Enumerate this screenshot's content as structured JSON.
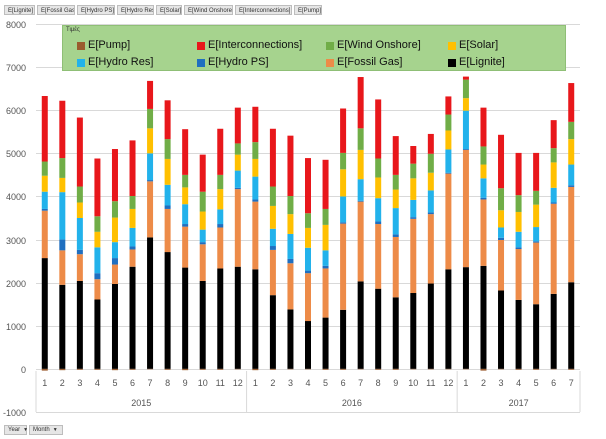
{
  "field_buttons": [
    "E[Lignite]",
    "E[Fossil Gas]",
    "E[Hydro PS]",
    "E[Hydro Res]",
    "E[Solar]",
    "E[Wind Onshore]",
    "E[Interconnections]",
    "E[Pump]"
  ],
  "axis_buttons": [
    {
      "label": "Year",
      "arrow": "▼"
    },
    {
      "label": "Month",
      "arrow": "▼"
    }
  ],
  "colors": {
    "E[Pump]": "#9a5b2e",
    "E[Interconnections]": "#e8171b",
    "E[Wind Onshore]": "#70ad47",
    "E[Solar]": "#ffc000",
    "E[Hydro Res]": "#22b2eb",
    "E[Hydro PS]": "#1f6fc0",
    "E[Fossil Gas]": "#ed8b48",
    "E[Lignite]": "#000000"
  },
  "chart_data": {
    "type": "bar",
    "stacked": true,
    "legend_title": "Τιμές",
    "ylim": [
      -1000,
      8000
    ],
    "yticks": [
      -1000,
      0,
      1000,
      2000,
      3000,
      4000,
      5000,
      6000,
      7000,
      8000
    ],
    "grid": true,
    "categories": [
      "1",
      "2",
      "3",
      "4",
      "5",
      "6",
      "7",
      "8",
      "9",
      "10",
      "11",
      "12",
      "1",
      "2",
      "3",
      "4",
      "5",
      "6",
      "7",
      "8",
      "9",
      "10",
      "11",
      "12",
      "1",
      "2",
      "3",
      "4",
      "5",
      "6",
      "7"
    ],
    "groups": [
      {
        "label": "2015",
        "count": 12
      },
      {
        "label": "2016",
        "count": 12
      },
      {
        "label": "2017",
        "count": 7
      }
    ],
    "series": [
      {
        "name": "E[Lignite]",
        "values": [
          2570,
          1950,
          2040,
          1610,
          1970,
          2370,
          3050,
          2710,
          2350,
          2040,
          2330,
          2370,
          2310,
          1710,
          1380,
          1110,
          1190,
          1370,
          2030,
          1860,
          1660,
          1760,
          1980,
          2310,
          2360,
          2390,
          1820,
          1600,
          1500,
          1740,
          2010
        ]
      },
      {
        "name": "E[Fossil Gas]",
        "values": [
          1100,
          800,
          620,
          470,
          450,
          400,
          1300,
          1000,
          950,
          850,
          950,
          1800,
          1570,
          1050,
          1070,
          1110,
          1140,
          2000,
          1850,
          1500,
          1400,
          1720,
          1610,
          2220,
          2720,
          1540,
          1170,
          1180,
          1430,
          2090,
          2210
        ]
      },
      {
        "name": "E[Hydro PS]",
        "values": [
          40,
          250,
          100,
          140,
          150,
          70,
          30,
          80,
          60,
          50,
          80,
          30,
          50,
          90,
          100,
          60,
          60,
          30,
          20,
          60,
          60,
          40,
          40,
          20,
          20,
          40,
          50,
          40,
          30,
          30,
          40
        ]
      },
      {
        "name": "E[Hydro Res]",
        "values": [
          400,
          1100,
          740,
          600,
          370,
          430,
          620,
          480,
          460,
          290,
          340,
          400,
          530,
          400,
          580,
          530,
          360,
          600,
          500,
          540,
          610,
          400,
          510,
          540,
          890,
          450,
          240,
          360,
          330,
          340,
          480
        ]
      },
      {
        "name": "E[Solar]",
        "values": [
          370,
          330,
          360,
          360,
          570,
          440,
          580,
          600,
          390,
          420,
          470,
          370,
          410,
          530,
          460,
          460,
          590,
          630,
          680,
          480,
          430,
          500,
          410,
          440,
          290,
          320,
          400,
          460,
          520,
          590,
          590
        ]
      },
      {
        "name": "E[Wind Onshore]",
        "values": [
          330,
          460,
          370,
          360,
          380,
          300,
          450,
          460,
          290,
          460,
          330,
          260,
          390,
          450,
          420,
          340,
          370,
          380,
          500,
          440,
          340,
          340,
          440,
          370,
          430,
          420,
          510,
          390,
          320,
          330,
          400
        ]
      },
      {
        "name": "E[Interconnections]",
        "values": [
          1520,
          1330,
          1600,
          1340,
          1210,
          1290,
          650,
          900,
          1060,
          860,
          1070,
          830,
          820,
          1340,
          1400,
          1280,
          1140,
          1030,
          1190,
          1370,
          900,
          410,
          460,
          420,
          70,
          900,
          1240,
          980,
          880,
          650,
          900
        ]
      },
      {
        "name": "E[Pump]",
        "values": [
          -40,
          -30,
          -20,
          -20,
          -30,
          -20,
          -10,
          -20,
          -30,
          -20,
          -20,
          -10,
          -30,
          -20,
          -10,
          -10,
          -20,
          -20,
          -10,
          -20,
          -20,
          -10,
          -10,
          -10,
          -10,
          -40,
          -10,
          -20,
          -20,
          -10,
          -20
        ]
      }
    ],
    "legend_order": [
      "E[Pump]",
      "E[Interconnections]",
      "E[Wind Onshore]",
      "E[Solar]",
      "E[Hydro Res]",
      "E[Hydro PS]",
      "E[Fossil Gas]",
      "E[Lignite]"
    ],
    "legend_position": "top"
  }
}
